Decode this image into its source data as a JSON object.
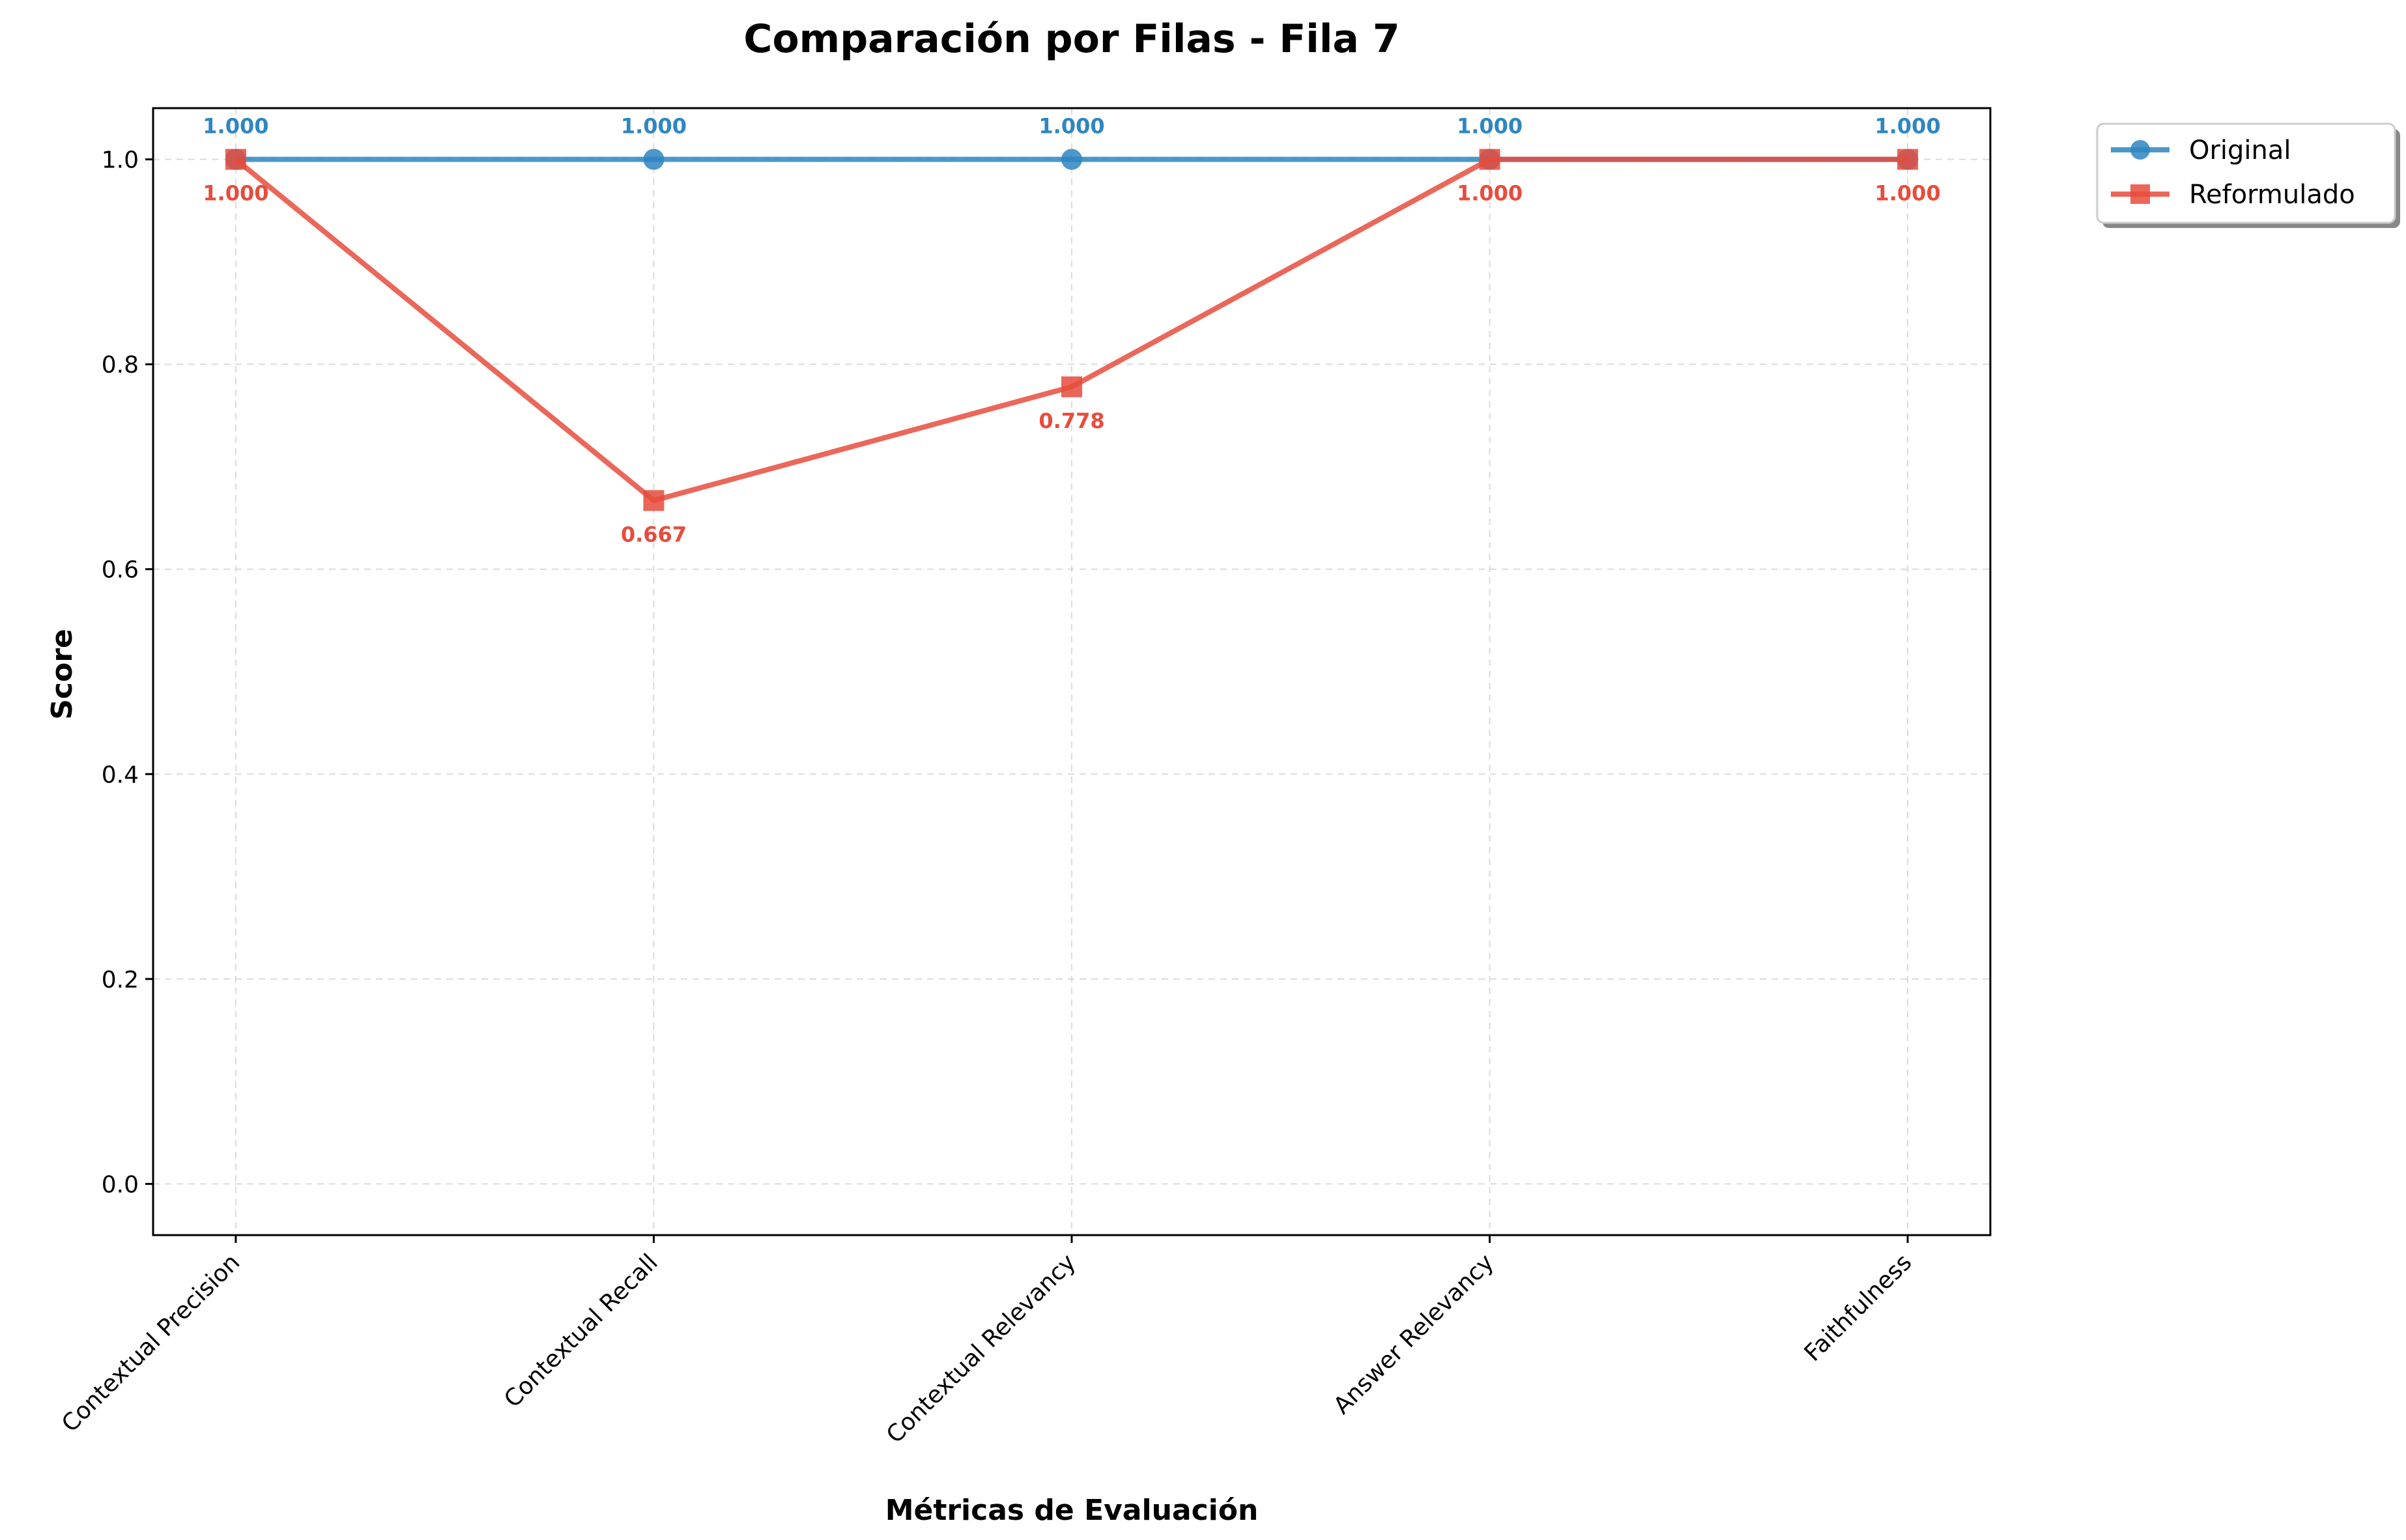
{
  "colors": {
    "original": "#2e86c1",
    "reformulado": "#e74c3c",
    "grid": "#cccccc"
  },
  "chart_data": {
    "type": "line",
    "title": "Comparación por Filas - Fila 7",
    "xlabel": "Métricas de Evaluación",
    "ylabel": "Score",
    "categories": [
      "Contextual Precision",
      "Contextual Recall",
      "Contextual Relevancy",
      "Answer Relevancy",
      "Faithfulness"
    ],
    "ylim": [
      -0.05,
      1.05
    ],
    "yticks": [
      "0.0",
      "0.2",
      "0.4",
      "0.6",
      "0.8",
      "1.0"
    ],
    "grid": true,
    "legend_position": "outside-top-right",
    "series": [
      {
        "name": "Original",
        "marker": "circle",
        "values": [
          1.0,
          1.0,
          1.0,
          1.0,
          1.0
        ],
        "labels": [
          "1.000",
          "1.000",
          "1.000",
          "1.000",
          "1.000"
        ]
      },
      {
        "name": "Reformulado",
        "marker": "square",
        "values": [
          1.0,
          0.667,
          0.778,
          1.0,
          1.0
        ],
        "labels": [
          "1.000",
          "0.667",
          "0.778",
          "1.000",
          "1.000"
        ]
      }
    ]
  }
}
